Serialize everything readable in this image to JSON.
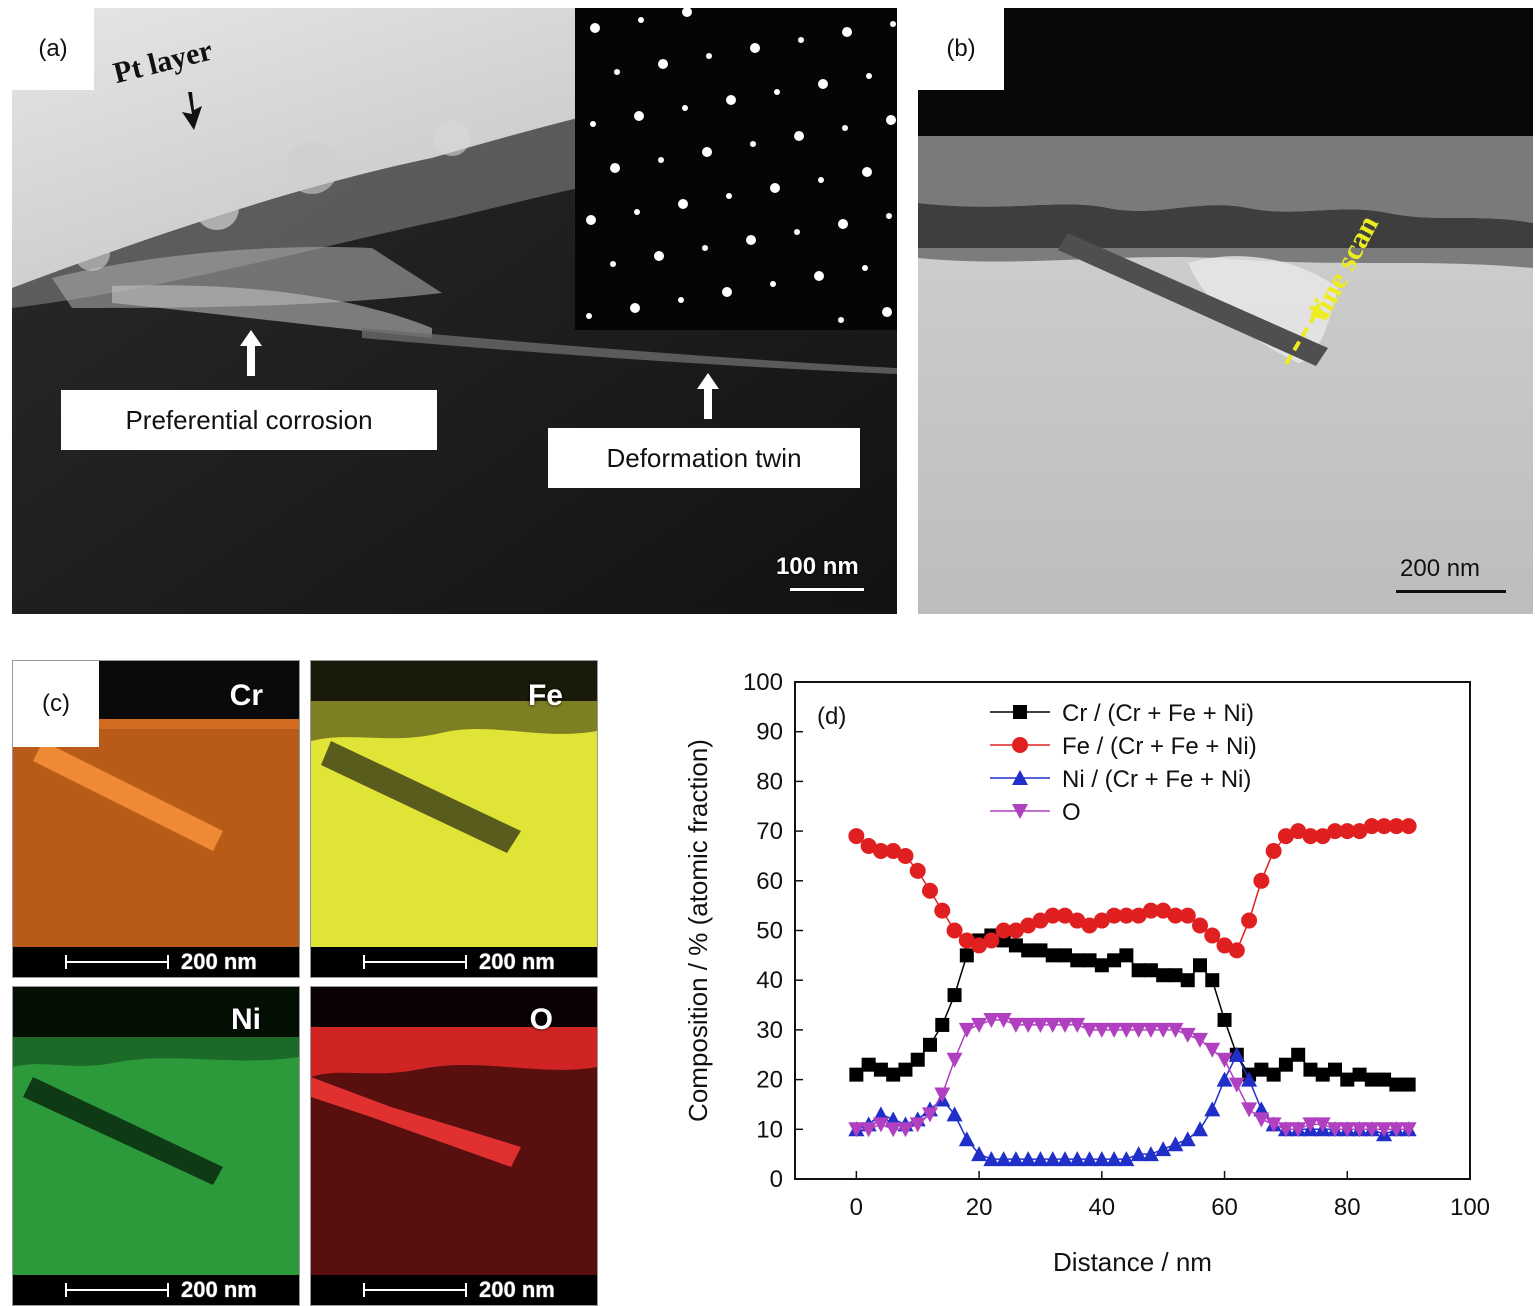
{
  "panel_a": {
    "label": "(a)",
    "pt_layer": "Pt layer",
    "callout_preferential": "Preferential corrosion",
    "callout_twin": "Deformation twin",
    "scalebar": "100 nm"
  },
  "panel_b": {
    "label": "(b)",
    "line_scan": "line scan",
    "scalebar": "200 nm"
  },
  "panel_c": {
    "label": "(c)",
    "maps": [
      {
        "element": "Cr",
        "scalebar": "200 nm",
        "color": "#d2691e"
      },
      {
        "element": "Fe",
        "scalebar": "200 nm",
        "color": "#e5ef40"
      },
      {
        "element": "Ni",
        "scalebar": "200 nm",
        "color": "#2fa640"
      },
      {
        "element": "O",
        "scalebar": "200 nm",
        "color": "#cc2020"
      }
    ]
  },
  "panel_d": {
    "label": "(d)"
  },
  "chart_data": {
    "type": "scatter",
    "xlabel": "Distance / nm",
    "ylabel": "Composition / % (atomic fraction)",
    "xlim": [
      -10,
      100
    ],
    "ylim": [
      0,
      100
    ],
    "xticks": [
      0,
      20,
      40,
      60,
      80,
      100
    ],
    "yticks": [
      0,
      10,
      20,
      30,
      40,
      50,
      60,
      70,
      80,
      90,
      100
    ],
    "legend_position": "top",
    "series": [
      {
        "name": "Cr / (Cr + Fe + Ni)",
        "color": "#000000",
        "marker": "square",
        "x": [
          0,
          2,
          4,
          6,
          8,
          10,
          12,
          14,
          16,
          18,
          20,
          22,
          24,
          26,
          28,
          30,
          32,
          34,
          36,
          38,
          40,
          42,
          44,
          46,
          48,
          50,
          52,
          54,
          56,
          58,
          60,
          62,
          64,
          66,
          68,
          70,
          72,
          74,
          76,
          78,
          80,
          82,
          84,
          86,
          88,
          90
        ],
        "y": [
          21,
          23,
          22,
          21,
          22,
          24,
          27,
          31,
          37,
          45,
          48,
          49,
          48,
          47,
          46,
          46,
          45,
          45,
          44,
          44,
          43,
          44,
          45,
          42,
          42,
          41,
          41,
          40,
          43,
          40,
          32,
          25,
          21,
          22,
          21,
          23,
          25,
          22,
          21,
          22,
          20,
          21,
          20,
          20,
          19,
          19
        ]
      },
      {
        "name": "Fe / (Cr + Fe + Ni)",
        "color": "#e02020",
        "marker": "circle",
        "x": [
          0,
          2,
          4,
          6,
          8,
          10,
          12,
          14,
          16,
          18,
          20,
          22,
          24,
          26,
          28,
          30,
          32,
          34,
          36,
          38,
          40,
          42,
          44,
          46,
          48,
          50,
          52,
          54,
          56,
          58,
          60,
          62,
          64,
          66,
          68,
          70,
          72,
          74,
          76,
          78,
          80,
          82,
          84,
          86,
          88,
          90
        ],
        "y": [
          69,
          67,
          66,
          66,
          65,
          62,
          58,
          54,
          50,
          48,
          47,
          48,
          50,
          50,
          51,
          52,
          53,
          53,
          52,
          51,
          52,
          53,
          53,
          53,
          54,
          54,
          53,
          53,
          51,
          49,
          47,
          46,
          52,
          60,
          66,
          69,
          70,
          69,
          69,
          70,
          70,
          70,
          71,
          71,
          71,
          71
        ]
      },
      {
        "name": "Ni / (Cr + Fe + Ni)",
        "color": "#1f2fc8",
        "marker": "triangle-up",
        "x": [
          0,
          2,
          4,
          6,
          8,
          10,
          12,
          14,
          16,
          18,
          20,
          22,
          24,
          26,
          28,
          30,
          32,
          34,
          36,
          38,
          40,
          42,
          44,
          46,
          48,
          50,
          52,
          54,
          56,
          58,
          60,
          62,
          64,
          66,
          68,
          70,
          72,
          74,
          76,
          78,
          80,
          82,
          84,
          86,
          88,
          90
        ],
        "y": [
          10,
          11,
          13,
          12,
          11,
          12,
          14,
          16,
          13,
          8,
          5,
          4,
          4,
          4,
          4,
          4,
          4,
          4,
          4,
          4,
          4,
          4,
          4,
          5,
          5,
          6,
          7,
          8,
          10,
          14,
          20,
          25,
          20,
          14,
          11,
          10,
          10,
          10,
          10,
          10,
          10,
          10,
          10,
          9,
          10,
          10
        ]
      },
      {
        "name": "O",
        "color": "#b040c0",
        "marker": "triangle-down",
        "x": [
          0,
          2,
          4,
          6,
          8,
          10,
          12,
          14,
          16,
          18,
          20,
          22,
          24,
          26,
          28,
          30,
          32,
          34,
          36,
          38,
          40,
          42,
          44,
          46,
          48,
          50,
          52,
          54,
          56,
          58,
          60,
          62,
          64,
          66,
          68,
          70,
          72,
          74,
          76,
          78,
          80,
          82,
          84,
          86,
          88,
          90
        ],
        "y": [
          10,
          10,
          11,
          10,
          10,
          11,
          13,
          17,
          24,
          30,
          31,
          32,
          32,
          31,
          31,
          31,
          31,
          31,
          31,
          30,
          30,
          30,
          30,
          30,
          30,
          30,
          30,
          29,
          28,
          26,
          24,
          19,
          14,
          12,
          11,
          10,
          10,
          11,
          11,
          10,
          10,
          10,
          10,
          10,
          10,
          10
        ]
      }
    ]
  }
}
